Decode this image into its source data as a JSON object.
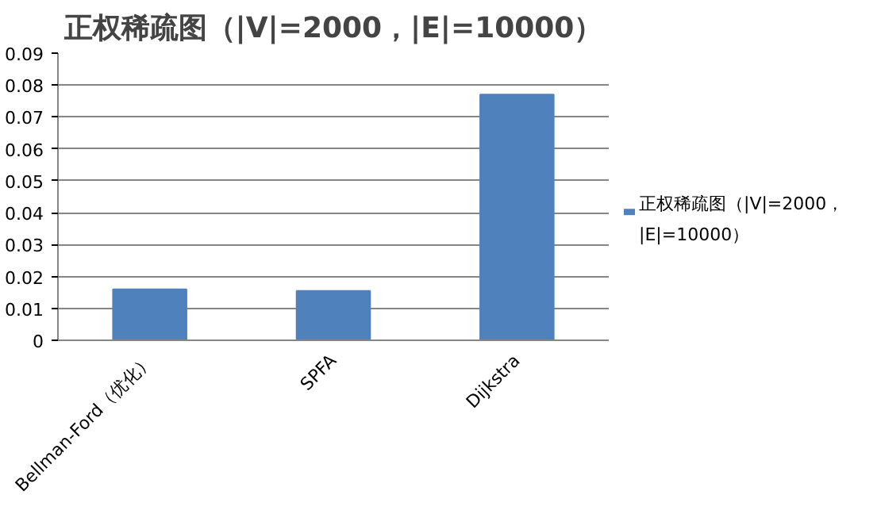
{
  "chart_data": {
    "type": "bar",
    "title": "正权稀疏图（|V|=2000，|E|=10000）",
    "categories": [
      "Bellman-Ford（优化）",
      "SPFA",
      "Dijkstra"
    ],
    "series": [
      {
        "name": "正权稀疏图（|V|=2000，|E|=10000）",
        "color": "#4f81bd",
        "values": [
          0.016,
          0.0155,
          0.077
        ]
      }
    ],
    "ylim": [
      0,
      0.09
    ],
    "yticks": [
      0,
      0.01,
      0.02,
      0.03,
      0.04,
      0.05,
      0.06,
      0.07,
      0.08,
      0.09
    ],
    "grid": "y",
    "legend": "right"
  }
}
